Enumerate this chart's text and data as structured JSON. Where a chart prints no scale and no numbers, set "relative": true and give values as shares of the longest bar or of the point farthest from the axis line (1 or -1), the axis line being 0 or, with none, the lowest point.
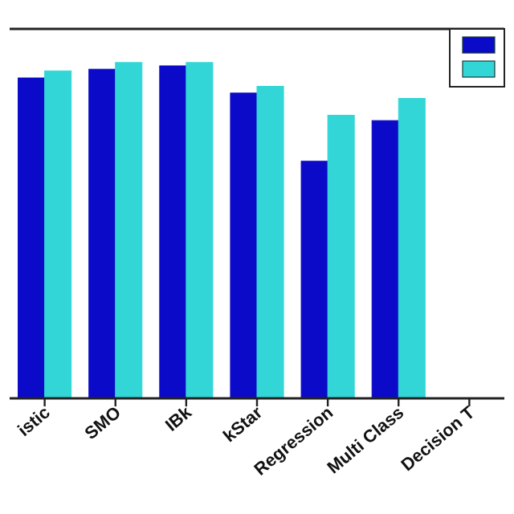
{
  "chart_data": {
    "type": "bar",
    "relative": true,
    "categories": [
      "istic",
      "SMO",
      "IBk",
      "kStar",
      "Regression",
      "Multi Class",
      "Decision T"
    ],
    "series": [
      {
        "color": "#0a0ac8",
        "values": [
          0.954,
          0.98,
          0.99,
          0.909,
          0.706,
          0.827,
          null
        ]
      },
      {
        "color": "#33d6d6",
        "values": [
          0.975,
          1,
          1,
          0.929,
          0.843,
          0.893,
          null
        ]
      }
    ]
  }
}
